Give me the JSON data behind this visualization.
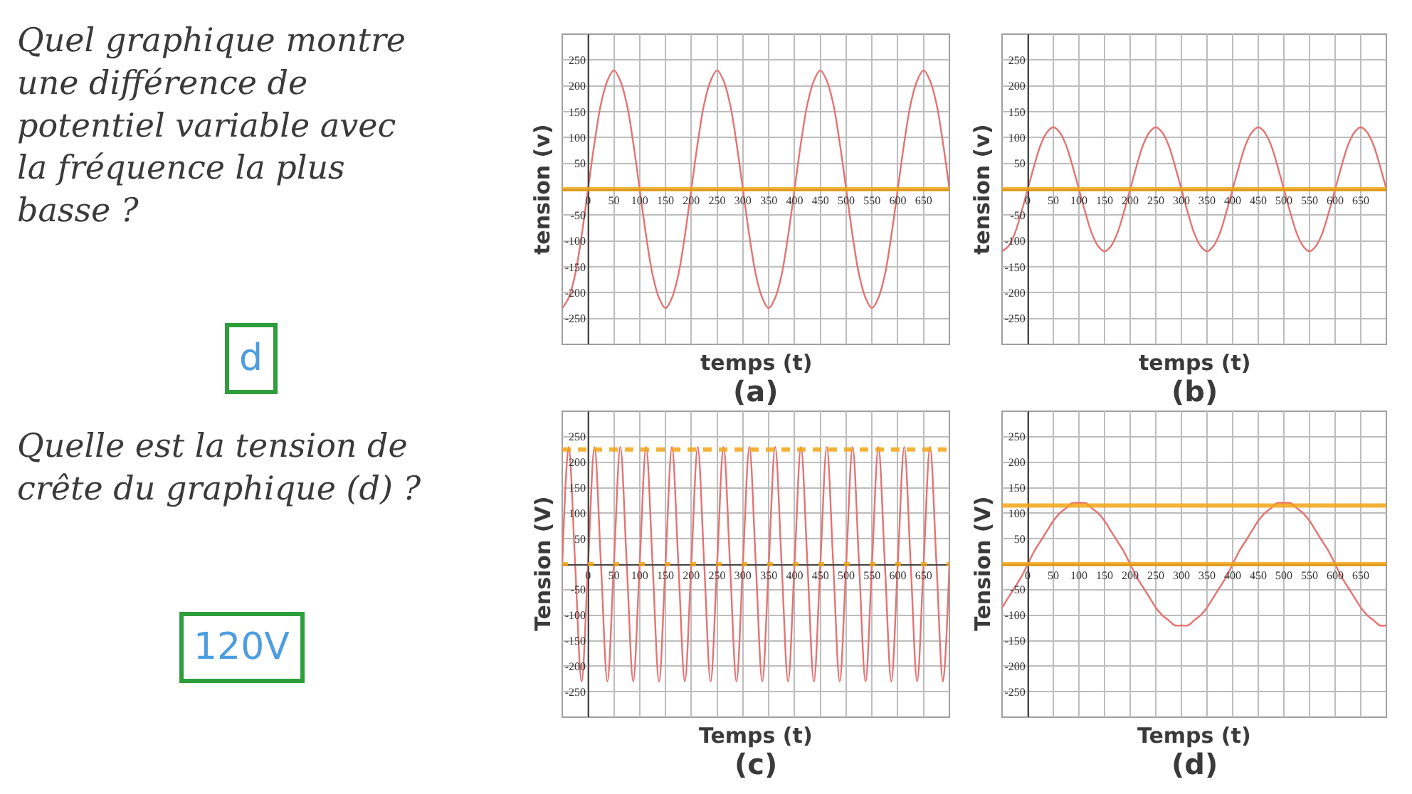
{
  "chart_data": [
    {
      "type": "other",
      "annotations": [
        "Quel graphique montre une différence de potentiel variable avec la fréquence la plus basse ?",
        "d"
      ]
    },
    {
      "type": "line",
      "title": "(a)",
      "xlabel": "temps (t)",
      "ylabel": "tension (v)",
      "color": "#e57373",
      "x": [
        -50,
        -37.5,
        -25,
        -12.5,
        0,
        12.5,
        25,
        37.5,
        50,
        62.5,
        75,
        87.5,
        100,
        112.5,
        125,
        137.5,
        150,
        162.5,
        175,
        187.5,
        200,
        212.5,
        225,
        237.5,
        250,
        262.5,
        275,
        287.5,
        300,
        312.5,
        325,
        337.5,
        350,
        362.5,
        375,
        387.5,
        400,
        412.5,
        425,
        437.5,
        450,
        462.5,
        475,
        487.5,
        500,
        512.5,
        525,
        537.5,
        550,
        562.5,
        575,
        587.5,
        600,
        612.5,
        625,
        637.5,
        650,
        662.5,
        675,
        687.5,
        700
      ],
      "values": [
        -230,
        -210,
        -165,
        -90,
        0,
        90,
        165,
        210,
        230,
        210,
        165,
        90,
        0,
        -90,
        -165,
        -210,
        -230,
        -210,
        -165,
        -90,
        0,
        90,
        165,
        210,
        230,
        210,
        165,
        90,
        0,
        -90,
        -165,
        -210,
        -230,
        -210,
        -165,
        -90,
        0,
        90,
        165,
        210,
        230,
        210,
        165,
        90,
        0,
        -90,
        -165,
        -210,
        -230,
        -210,
        -165,
        -90,
        0,
        90,
        165,
        210,
        230,
        210,
        165,
        90,
        0
      ],
      "xlim": [
        -50,
        700
      ],
      "ylim": [
        -300,
        300
      ],
      "xticks": [
        0,
        50,
        100,
        150,
        200,
        250,
        300,
        350,
        400,
        450,
        500,
        550,
        600,
        650
      ],
      "yticks": [
        -250,
        -200,
        -150,
        -100,
        -50,
        50,
        100,
        150,
        200,
        250
      ],
      "grid": true,
      "ref_lines": [
        {
          "axis": "y",
          "value": 0,
          "color": "#f2a516"
        }
      ]
    },
    {
      "type": "line",
      "title": "(b)",
      "xlabel": "temps (t)",
      "ylabel": "tension (v)",
      "color": "#e57373",
      "x": [
        -50,
        -37.5,
        -25,
        -12.5,
        0,
        12.5,
        25,
        37.5,
        50,
        62.5,
        75,
        87.5,
        100,
        112.5,
        125,
        137.5,
        150,
        162.5,
        175,
        187.5,
        200,
        212.5,
        225,
        237.5,
        250,
        262.5,
        275,
        287.5,
        300,
        312.5,
        325,
        337.5,
        350,
        362.5,
        375,
        387.5,
        400,
        412.5,
        425,
        437.5,
        450,
        462.5,
        475,
        487.5,
        500,
        512.5,
        525,
        537.5,
        550,
        562.5,
        575,
        587.5,
        600,
        612.5,
        625,
        637.5,
        650,
        662.5,
        675,
        687.5,
        700
      ],
      "values": [
        -120,
        -110,
        -85,
        -45,
        0,
        45,
        85,
        110,
        120,
        110,
        85,
        45,
        0,
        -45,
        -85,
        -110,
        -120,
        -110,
        -85,
        -45,
        0,
        45,
        85,
        110,
        120,
        110,
        85,
        45,
        0,
        -45,
        -85,
        -110,
        -120,
        -110,
        -85,
        -45,
        0,
        45,
        85,
        110,
        120,
        110,
        85,
        45,
        0,
        -45,
        -85,
        -110,
        -120,
        -110,
        -85,
        -45,
        0,
        45,
        85,
        110,
        120,
        110,
        85,
        45,
        0
      ],
      "xlim": [
        -50,
        700
      ],
      "ylim": [
        -300,
        300
      ],
      "xticks": [
        0,
        50,
        100,
        150,
        200,
        250,
        300,
        350,
        400,
        450,
        500,
        550,
        600,
        650
      ],
      "yticks": [
        -250,
        -200,
        -150,
        -100,
        -50,
        50,
        100,
        150,
        200,
        250
      ],
      "grid": true,
      "ref_lines": [
        {
          "axis": "y",
          "value": 0,
          "color": "#f2a516"
        }
      ]
    },
    {
      "type": "other",
      "annotations": [
        "Quelle est la tension de crête du graphique (d) ?",
        "120V"
      ]
    },
    {
      "type": "line",
      "title": "(c)",
      "xlabel": "Temps (t)",
      "ylabel": "Tension (V)",
      "color": "#e57373",
      "x": [
        -50,
        -37.5,
        -25,
        -12.5,
        0,
        12.5,
        25,
        37.5,
        50,
        62.5,
        75,
        87.5,
        100,
        112.5,
        125,
        137.5,
        150,
        162.5,
        175,
        187.5,
        200,
        212.5,
        225,
        237.5,
        250,
        262.5,
        275,
        287.5,
        300,
        312.5,
        325,
        337.5,
        350,
        362.5,
        375,
        387.5,
        400,
        412.5,
        425,
        437.5,
        450,
        462.5,
        475,
        487.5,
        500,
        512.5,
        525,
        537.5,
        550,
        562.5,
        575,
        587.5,
        600,
        612.5,
        625,
        637.5,
        650,
        662.5,
        675,
        687.5,
        700
      ],
      "values": [
        0,
        230,
        0,
        -230,
        0,
        230,
        0,
        -230,
        0,
        230,
        0,
        -230,
        0,
        230,
        0,
        -230,
        0,
        230,
        0,
        -230,
        0,
        230,
        0,
        -230,
        0,
        230,
        0,
        -230,
        0,
        230,
        0,
        -230,
        0,
        230,
        0,
        -230,
        0,
        230,
        0,
        -230,
        0,
        230,
        0,
        -230,
        0,
        230,
        0,
        -230,
        0,
        230,
        0,
        -230,
        0,
        230,
        0,
        -230,
        0,
        230,
        0,
        -230,
        0
      ],
      "xlim": [
        -50,
        700
      ],
      "ylim": [
        -300,
        300
      ],
      "xticks": [
        0,
        50,
        100,
        150,
        200,
        250,
        300,
        350,
        400,
        450,
        500,
        550,
        600,
        650
      ],
      "yticks": [
        -250,
        -200,
        -150,
        -100,
        -50,
        50,
        100,
        150,
        200,
        250
      ],
      "grid": true,
      "ref_lines": [
        {
          "axis": "y",
          "value": 225,
          "color": "#f2a516",
          "line_style": "dashed"
        },
        {
          "axis": "y",
          "value": 0,
          "color": "#f2a516",
          "line_style": "dotted"
        }
      ]
    },
    {
      "type": "line",
      "title": "(d)",
      "xlabel": "Temps (t)",
      "ylabel": "Tension (V)",
      "color": "#e57373",
      "x": [
        -50,
        -37.5,
        -25,
        -12.5,
        0,
        12.5,
        25,
        37.5,
        50,
        62.5,
        75,
        87.5,
        100,
        112.5,
        125,
        137.5,
        150,
        162.5,
        175,
        187.5,
        200,
        212.5,
        225,
        237.5,
        250,
        262.5,
        275,
        287.5,
        300,
        312.5,
        325,
        337.5,
        350,
        362.5,
        375,
        387.5,
        400,
        412.5,
        425,
        437.5,
        450,
        462.5,
        475,
        487.5,
        500,
        512.5,
        525,
        537.5,
        550,
        562.5,
        575,
        587.5,
        600,
        612.5,
        625,
        637.5,
        650,
        662.5,
        675,
        687.5,
        700
      ],
      "values": [
        -85,
        -65,
        -45,
        -25,
        0,
        25,
        45,
        65,
        85,
        100,
        110,
        120,
        120,
        120,
        110,
        100,
        85,
        65,
        45,
        25,
        0,
        -25,
        -45,
        -65,
        -85,
        -100,
        -110,
        -120,
        -120,
        -120,
        -110,
        -100,
        -85,
        -65,
        -45,
        -25,
        0,
        25,
        45,
        65,
        85,
        100,
        110,
        120,
        120,
        120,
        110,
        100,
        85,
        65,
        45,
        25,
        0,
        -25,
        -45,
        -65,
        -85,
        -100,
        -110,
        -120,
        -120
      ],
      "xlim": [
        -50,
        700
      ],
      "ylim": [
        -300,
        300
      ],
      "xticks": [
        0,
        50,
        100,
        150,
        200,
        250,
        300,
        350,
        400,
        450,
        500,
        550,
        600,
        650
      ],
      "yticks": [
        -250,
        -200,
        -150,
        -100,
        -50,
        50,
        100,
        150,
        200,
        250
      ],
      "grid": true,
      "ref_lines": [
        {
          "axis": "y",
          "value": 0,
          "color": "#f2a516"
        },
        {
          "axis": "y",
          "value": 115,
          "color": "#f2a516"
        }
      ]
    }
  ]
}
